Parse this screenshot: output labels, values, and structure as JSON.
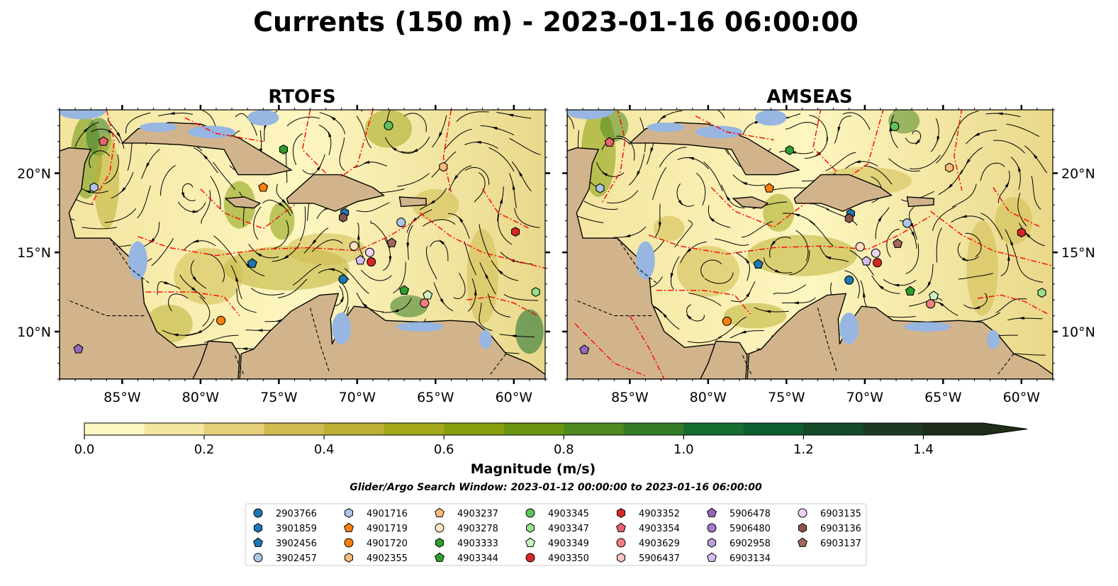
{
  "figure": {
    "title": "Currents (150 m) - 2023-01-16 06:00:00",
    "search_window_note": "Glider/Argo Search Window: 2023-01-12 00:00:00 to 2023-01-16 06:00:00"
  },
  "map": {
    "lon_range": [
      -89,
      -58
    ],
    "lat_range": [
      7,
      24
    ],
    "lon_ticks": [
      -85,
      -80,
      -75,
      -70,
      -65,
      -60
    ],
    "lon_tick_labels": [
      "85°W",
      "80°W",
      "75°W",
      "70°W",
      "65°W",
      "60°W"
    ],
    "lat_ticks": [
      10,
      15,
      20
    ],
    "lat_tick_labels": [
      "10°N",
      "15°N",
      "20°N"
    ],
    "land_color": "#d2b48c",
    "ocean_nodata_color": "#97b6e1",
    "eez_color": "#ff0000",
    "panels": [
      {
        "name": "RTOFS"
      },
      {
        "name": "AMSEAS"
      }
    ]
  },
  "colorbar": {
    "label": "Magnitude (m/s)",
    "min": 0.0,
    "max": 1.5,
    "extend": "max",
    "ticks": [
      0.0,
      0.2,
      0.4,
      0.6,
      0.8,
      1.0,
      1.2,
      1.4
    ],
    "tick_labels": [
      "0.0",
      "0.2",
      "0.4",
      "0.6",
      "0.8",
      "1.0",
      "1.2",
      "1.4"
    ],
    "colors": [
      "#fdf6c0",
      "#f3e49e",
      "#e3cf78",
      "#cfbb51",
      "#bbb034",
      "#a3a81b",
      "#879f0c",
      "#6a940e",
      "#4f8921",
      "#347c27",
      "#156d30",
      "#0d5e2f",
      "#144a28",
      "#1c3a20",
      "#1f2d18"
    ]
  },
  "legend": {
    "entries": [
      {
        "id": "2903766",
        "color": "#1f77b4",
        "marker": "circle"
      },
      {
        "id": "3901859",
        "color": "#1f77b4",
        "marker": "hexagon"
      },
      {
        "id": "3902456",
        "color": "#1f77b4",
        "marker": "pentagon"
      },
      {
        "id": "3902457",
        "color": "#aec7e8",
        "marker": "circle"
      },
      {
        "id": "4901716",
        "color": "#aec7e8",
        "marker": "hexagon"
      },
      {
        "id": "4901719",
        "color": "#ff7f0e",
        "marker": "pentagon"
      },
      {
        "id": "4901720",
        "color": "#ff7f0e",
        "marker": "circle"
      },
      {
        "id": "4902355",
        "color": "#ffbb78",
        "marker": "hexagon"
      },
      {
        "id": "4903237",
        "color": "#ffbb78",
        "marker": "pentagon"
      },
      {
        "id": "4903278",
        "color": "#ffe0c2",
        "marker": "circle"
      },
      {
        "id": "4903333",
        "color": "#2ca02c",
        "marker": "hexagon"
      },
      {
        "id": "4903344",
        "color": "#2ca02c",
        "marker": "pentagon"
      },
      {
        "id": "4903345",
        "color": "#5cc35c",
        "marker": "circle"
      },
      {
        "id": "4903347",
        "color": "#98df8a",
        "marker": "hexagon"
      },
      {
        "id": "4903349",
        "color": "#c9f5c0",
        "marker": "pentagon"
      },
      {
        "id": "4903350",
        "color": "#d62728",
        "marker": "circle"
      },
      {
        "id": "4903352",
        "color": "#d62728",
        "marker": "hexagon"
      },
      {
        "id": "4903354",
        "color": "#e8636b",
        "marker": "pentagon"
      },
      {
        "id": "4903629",
        "color": "#f08080",
        "marker": "circle"
      },
      {
        "id": "5906437",
        "color": "#ffc4c4",
        "marker": "hexagon"
      },
      {
        "id": "5906478",
        "color": "#9467bd",
        "marker": "pentagon"
      },
      {
        "id": "5906480",
        "color": "#a07cc8",
        "marker": "circle"
      },
      {
        "id": "6902958",
        "color": "#b9a0d8",
        "marker": "hexagon"
      },
      {
        "id": "6903134",
        "color": "#d4bff0",
        "marker": "pentagon"
      },
      {
        "id": "6903135",
        "color": "#ecd4f6",
        "marker": "circle"
      },
      {
        "id": "6903136",
        "color": "#8c564b",
        "marker": "hexagon"
      },
      {
        "id": "6903137",
        "color": "#a0695c",
        "marker": "pentagon"
      }
    ]
  },
  "platforms": [
    {
      "id": "4903354",
      "lon": -86.2,
      "lat": 22.0
    },
    {
      "id": "4901716",
      "lon": -86.8,
      "lat": 19.1
    },
    {
      "id": "5906478",
      "lon": -87.8,
      "lat": 8.9
    },
    {
      "id": "4901719",
      "lon": -76.0,
      "lat": 19.1
    },
    {
      "id": "4903333",
      "lon": -74.7,
      "lat": 21.5
    },
    {
      "id": "4903345",
      "lon": -68.0,
      "lat": 23.0
    },
    {
      "id": "4902355",
      "lon": -64.5,
      "lat": 20.4
    },
    {
      "id": "3901859",
      "lon": -70.8,
      "lat": 17.5
    },
    {
      "id": "6903136",
      "lon": -70.9,
      "lat": 17.2
    },
    {
      "id": "3902457",
      "lon": -67.2,
      "lat": 16.9
    },
    {
      "id": "6903137",
      "lon": -67.8,
      "lat": 15.6
    },
    {
      "id": "4903352",
      "lon": -59.9,
      "lat": 16.3
    },
    {
      "id": "4903278",
      "lon": -70.2,
      "lat": 15.4
    },
    {
      "id": "6903135",
      "lon": -69.2,
      "lat": 15.0
    },
    {
      "id": "4903350",
      "lon": -69.1,
      "lat": 14.4
    },
    {
      "id": "6903134",
      "lon": -69.8,
      "lat": 14.5
    },
    {
      "id": "3902456",
      "lon": -76.7,
      "lat": 14.3
    },
    {
      "id": "2903766",
      "lon": -70.9,
      "lat": 13.3
    },
    {
      "id": "4903344",
      "lon": -67.0,
      "lat": 12.6
    },
    {
      "id": "4903349",
      "lon": -65.5,
      "lat": 12.3
    },
    {
      "id": "4903629",
      "lon": -65.7,
      "lat": 11.8
    },
    {
      "id": "4903347",
      "lon": -58.6,
      "lat": 12.5
    },
    {
      "id": "4901720",
      "lon": -78.7,
      "lat": 10.7
    }
  ]
}
